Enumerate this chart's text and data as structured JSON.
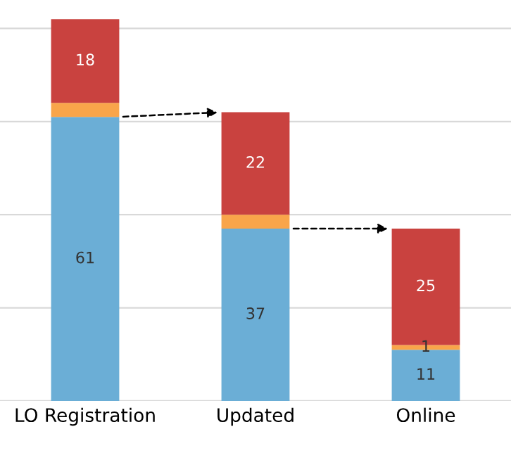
{
  "chart_data": {
    "type": "bar",
    "stacked": true,
    "categories": [
      "LO Registration",
      "Updated",
      "Online"
    ],
    "series": [
      {
        "color": "#6baed6",
        "values": [
          61,
          37,
          11
        ],
        "value_labels": [
          "61",
          "37",
          "11"
        ]
      },
      {
        "color": "#f9a54a",
        "values": [
          3,
          3,
          1
        ],
        "value_labels": [
          null,
          null,
          "1"
        ]
      },
      {
        "color": "#c9423f",
        "values": [
          18,
          22,
          25
        ],
        "value_labels": [
          "18",
          "22",
          "25"
        ]
      }
    ],
    "yticks": [
      {
        "value": 0,
        "label": null
      },
      {
        "value": 20,
        "label": null
      },
      {
        "value": 40,
        "label": null
      },
      {
        "value": 60,
        "label": null
      },
      {
        "value": 80,
        "label": null
      }
    ],
    "grid": "y",
    "tick_labels": "x",
    "legend": false
  }
}
